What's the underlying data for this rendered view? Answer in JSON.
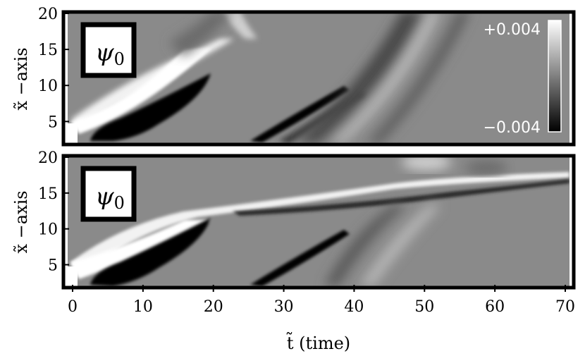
{
  "chart_data": [
    {
      "type": "heatmap",
      "panel": "top",
      "inset_label": "ψ",
      "inset_subscript": "0",
      "ylabel": "x̃ −axis",
      "xlim": [
        0,
        70
      ],
      "ylim": [
        2,
        20
      ],
      "y_ticks": [
        "5",
        "10",
        "15",
        "20"
      ],
      "y_tick_values": [
        5,
        10,
        15,
        20
      ],
      "colorbar": {
        "max_label": "+0.004",
        "min_label": "−0.004",
        "range": [
          -0.004,
          0.004
        ],
        "colors": [
          "#000000",
          "#ffffff"
        ]
      }
    },
    {
      "type": "heatmap",
      "panel": "bottom",
      "inset_label": "ψ",
      "inset_subscript": "0",
      "ylabel": "x̃ −axis",
      "xlabel": "t̃ (time)",
      "xlim": [
        0,
        70
      ],
      "ylim": [
        2,
        20
      ],
      "x_ticks": [
        "0",
        "10",
        "20",
        "30",
        "40",
        "50",
        "60",
        "70"
      ],
      "x_tick_values": [
        0,
        10,
        20,
        30,
        40,
        50,
        60,
        70
      ],
      "y_ticks": [
        "5",
        "10",
        "15",
        "20"
      ],
      "y_tick_values": [
        5,
        10,
        15,
        20
      ]
    }
  ]
}
